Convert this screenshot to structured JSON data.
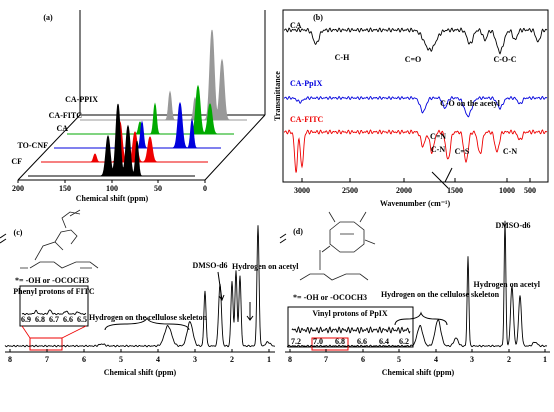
{
  "panels": [
    {
      "label": "(a)",
      "x_axis_title": "Chemical shift (ppm)",
      "x_ticks": [
        "200",
        "150",
        "100",
        "50",
        "0"
      ],
      "traces": [
        "CA-PPIX",
        "CA-FITC",
        "CA",
        "TO-CNF",
        "CF"
      ]
    },
    {
      "label": "(b)",
      "y_axis_title": "Transmittance",
      "x_axis_title": "Wavenumber (cm⁻¹)",
      "x_ticks": [
        "3000",
        "2500",
        "2000",
        "1500",
        "1000",
        "500"
      ],
      "traces": [
        "CA",
        "CA-PpIX",
        "CA-FITC"
      ],
      "annotations": [
        "C-H",
        "C=O",
        "C-O-C",
        "C-O on the acetyl",
        "C=N",
        "C-N",
        "C=S",
        "C-N"
      ]
    },
    {
      "label": "(c)",
      "x_axis_title": "Chemical shift (ppm)",
      "x_ticks": [
        "8",
        "7",
        "6",
        "5",
        "4",
        "3",
        "2",
        "1"
      ],
      "inset_title": "Phenyl protons of FITC",
      "inset_ticks": [
        "6.9",
        "6.8",
        "6.7",
        "6.6",
        "6.5"
      ],
      "annotations": [
        "*= -OH or -OCOCH3",
        "DMSO-d6",
        "Hydrogen on acetyl",
        "Hydrogen on the cellulose skeleton"
      ]
    },
    {
      "label": "(d)",
      "x_axis_title": "Chemical shift (ppm)",
      "x_ticks": [
        "8",
        "7",
        "6",
        "5",
        "4",
        "3",
        "2",
        "1"
      ],
      "inset_title": "Vinyl protons of PpIX",
      "inset_ticks": [
        "7.2",
        "7.0",
        "6.8",
        "6.6",
        "6.4",
        "6.2"
      ],
      "annotations": [
        "*= -OH or -OCOCH3",
        "DMSO-d6",
        "Hydrogen on acetyl",
        "Hydrogen on the cellulose skeleton"
      ]
    }
  ]
}
